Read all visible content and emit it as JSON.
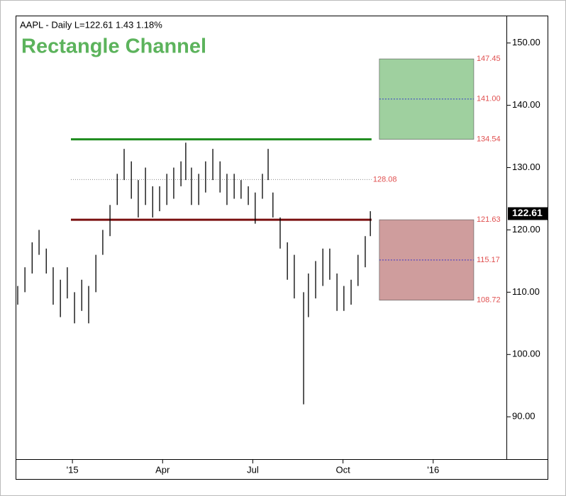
{
  "chart_data": {
    "type": "ohlc",
    "header": "AAPL - Daily  L=122.61  1.43  1.18%",
    "title": "Rectangle Channel",
    "x": [
      -1.82,
      -1.58,
      -1.34,
      -1.11,
      -0.87,
      -0.64,
      -0.4,
      -0.17,
      0.07,
      0.31,
      0.54,
      0.78,
      1.01,
      1.25,
      1.49,
      1.72,
      1.96,
      2.19,
      2.43,
      2.67,
      2.9,
      3.14,
      3.37,
      3.61,
      3.77,
      3.96,
      4.2,
      4.43,
      4.67,
      4.91,
      5.14,
      5.38,
      5.61,
      5.85,
      6.08,
      6.32,
      6.51,
      6.67,
      6.91,
      7.15,
      7.38,
      7.69,
      7.85,
      8.09,
      8.33,
      8.56,
      8.8,
      9.03,
      9.27,
      9.5,
      9.74,
      9.91
    ],
    "high": [
      111,
      114,
      118,
      120,
      117,
      114,
      112,
      114,
      110,
      112,
      111,
      116,
      120,
      124,
      129,
      133,
      131,
      128,
      130,
      127,
      127,
      129,
      130,
      131,
      134,
      130,
      129,
      131,
      133,
      131,
      129,
      129,
      128,
      127,
      126,
      129,
      133,
      126,
      122,
      118,
      116,
      110,
      113,
      115,
      117,
      117,
      113,
      111,
      112,
      116,
      119,
      123
    ],
    "low": [
      108,
      110,
      113,
      116,
      113,
      108,
      106,
      109,
      105,
      107,
      105,
      110,
      116,
      119,
      124,
      128,
      125,
      122,
      124,
      122,
      123,
      124,
      125,
      127,
      128,
      124,
      124,
      126,
      128,
      126,
      124,
      125,
      125,
      124,
      121,
      125,
      128,
      122,
      117,
      112,
      109,
      92,
      106,
      109,
      111,
      112,
      107,
      107,
      108,
      111,
      114,
      119
    ],
    "color": "#000000",
    "channel": {
      "top": 134.54,
      "bottom": 121.63,
      "mid": 128.08,
      "x_start": -0.05,
      "x_end": 9.95,
      "top_color": "#1e8c1e",
      "bottom_color": "#7a1010"
    },
    "target_x": [
      10.21,
      13.35
    ],
    "targets": [
      {
        "top": 147.45,
        "mid": {
          "value": 141,
          "label": "141.00"
        },
        "bottom": 134.54,
        "color": "#9fd09f"
      },
      {
        "top": 121.63,
        "mid": 115.17,
        "bottom": 108.72,
        "color": "#cf9d9d"
      }
    ],
    "last": 122.61,
    "xlim": [
      -1.89,
      14.46
    ],
    "ylim": [
      83.2,
      154.4
    ],
    "xticks": [
      {
        "value": 0,
        "label": "'15"
      },
      {
        "value": 3,
        "label": "Apr"
      },
      {
        "value": 6,
        "label": "Jul"
      },
      {
        "value": 9,
        "label": "Oct"
      },
      {
        "value": 12,
        "label": "'16"
      }
    ],
    "yticks": [
      {
        "value": 90,
        "label": "90.00"
      },
      {
        "value": 100,
        "label": "100.00"
      },
      {
        "value": 110,
        "label": "110.00"
      },
      {
        "value": 120,
        "label": "120.00"
      },
      {
        "value": 130,
        "label": "130.00"
      },
      {
        "value": 140,
        "label": "140.00"
      },
      {
        "value": 150,
        "label": "150.00"
      }
    ]
  }
}
